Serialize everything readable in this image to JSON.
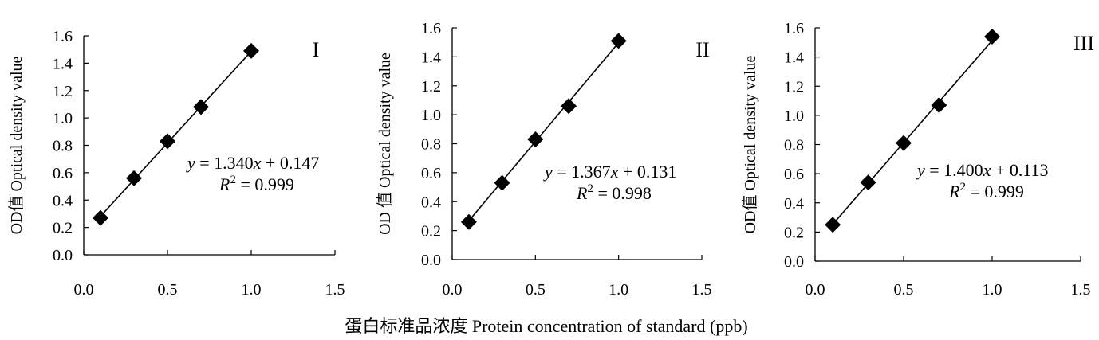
{
  "figure": {
    "xlabel": "蛋白标准品浓度  Protein concentration of standard (ppb)",
    "ylabel": "OD值 Optical density value"
  },
  "chart_data": [
    {
      "type": "scatter",
      "panel_label": "I",
      "x": [
        0.1,
        0.3,
        0.5,
        0.7,
        1.0
      ],
      "y": [
        0.27,
        0.56,
        0.83,
        1.08,
        1.49
      ],
      "fit": {
        "slope": 1.34,
        "intercept": 0.147
      },
      "equation": {
        "y": "y",
        "eq1": " = 1.340",
        "x": "x",
        "eq2": " + 0.147",
        "r": "R",
        "sup": "2",
        "r2": " = 0.999"
      },
      "xlim": [
        0.0,
        1.5
      ],
      "ylim": [
        0.0,
        1.6
      ],
      "xticks": [
        "0.0",
        "0.5",
        "1.0",
        "1.5"
      ],
      "yticks": [
        "0.0",
        "0.2",
        "0.4",
        "0.6",
        "0.8",
        "1.0",
        "1.2",
        "1.4",
        "1.6"
      ],
      "ylabel": "OD值 Optical density value",
      "grid": false
    },
    {
      "type": "scatter",
      "panel_label": "II",
      "x": [
        0.1,
        0.3,
        0.5,
        0.7,
        1.0
      ],
      "y": [
        0.26,
        0.53,
        0.83,
        1.06,
        1.51
      ],
      "fit": {
        "slope": 1.367,
        "intercept": 0.131
      },
      "equation": {
        "y": "y",
        "eq1": " = 1.367",
        "x": "x",
        "eq2": " + 0.131",
        "r": "R",
        "sup": "2",
        "r2": " = 0.998"
      },
      "xlim": [
        0.0,
        1.5
      ],
      "ylim": [
        0.0,
        1.6
      ],
      "xticks": [
        "0.0",
        "0.5",
        "1.0",
        "1.5"
      ],
      "yticks": [
        "0.0",
        "0.2",
        "0.4",
        "0.6",
        "0.8",
        "1.0",
        "1.2",
        "1.4",
        "1.6"
      ],
      "ylabel": "OD 值 Optical density value",
      "grid": false
    },
    {
      "type": "scatter",
      "panel_label": "III",
      "x": [
        0.1,
        0.3,
        0.5,
        0.7,
        1.0
      ],
      "y": [
        0.25,
        0.54,
        0.81,
        1.07,
        1.54
      ],
      "fit": {
        "slope": 1.4,
        "intercept": 0.113
      },
      "equation": {
        "y": "y",
        "eq1": " = 1.400",
        "x": "x",
        "eq2": " + 0.113",
        "r": "R",
        "sup": "2",
        "r2": " = 0.999"
      },
      "xlim": [
        0.0,
        1.5
      ],
      "ylim": [
        0.0,
        1.6
      ],
      "xticks": [
        "0.0",
        "0.5",
        "1.0",
        "1.5"
      ],
      "yticks": [
        "0.0",
        "0.2",
        "0.4",
        "0.6",
        "0.8",
        "1.0",
        "1.2",
        "1.4",
        "1.6"
      ],
      "ylabel": "OD值 Optical density value",
      "grid": false
    }
  ]
}
